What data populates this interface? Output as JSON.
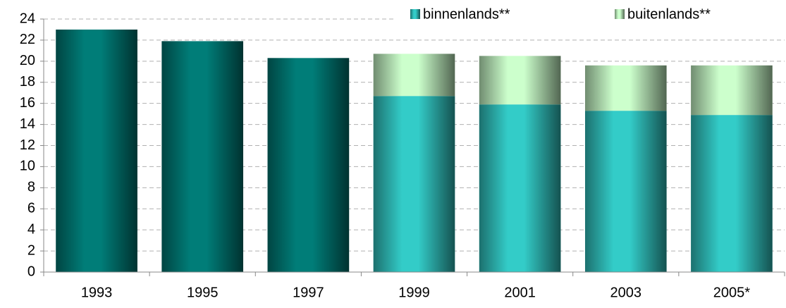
{
  "chart_data": {
    "type": "stacked-bar",
    "categories": [
      "1993",
      "1995",
      "1997",
      "1999",
      "2001",
      "2003",
      "2005*"
    ],
    "series": [
      {
        "color": "#007d78",
        "values": [
          23.0,
          21.9,
          20.3,
          null,
          null,
          null,
          null
        ]
      },
      {
        "name": "binnenlands**",
        "color": "#33ccc8",
        "values": [
          null,
          null,
          null,
          16.7,
          15.9,
          15.3,
          14.9
        ]
      },
      {
        "name": "buitenlands**",
        "color": "#ccffcc",
        "values": [
          null,
          null,
          null,
          4.0,
          4.6,
          4.3,
          4.7
        ]
      }
    ],
    "ylim": [
      0,
      24
    ],
    "yticks": [
      0,
      2,
      4,
      6,
      8,
      10,
      12,
      14,
      16,
      18,
      20,
      22,
      24
    ],
    "grid": true,
    "legend": "top-right"
  }
}
